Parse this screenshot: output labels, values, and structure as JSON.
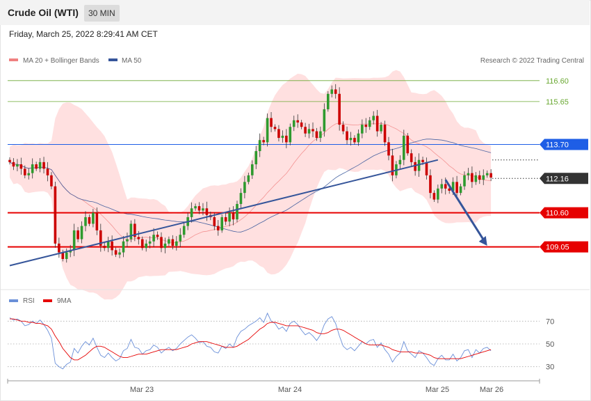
{
  "header": {
    "title": "Crude Oil (WTI)",
    "timeframe": "30 MIN"
  },
  "date_line": "Friday, March 25, 2022 8:29:41 AM CET",
  "legend": {
    "ma20": {
      "label": "MA 20 + Bollinger Bands",
      "color": "#f08080"
    },
    "ma50": {
      "label": "MA 50",
      "color": "#35559a"
    }
  },
  "credit": "Research © 2022 Trading Central",
  "rsi_legend": {
    "rsi": {
      "label": "RSI",
      "color": "#6a8fd8"
    },
    "ma9": {
      "label": "9MA",
      "color": "#e60000"
    }
  },
  "colors": {
    "up": "#2e9a2e",
    "down": "#cc0000",
    "band": "#ffdada",
    "trend": "#35559a"
  },
  "chart_data": [
    {
      "type": "line",
      "subtype": "candlestick",
      "title": "Crude Oil (WTI)",
      "ylim": [
        107.3,
        117.1
      ],
      "x_ticks": [
        "Mar 23",
        "Mar 24",
        "Mar 25",
        "Mar 26"
      ],
      "levels": [
        {
          "label": "116.60",
          "value": 116.6,
          "kind": "target",
          "color": "#6aa832"
        },
        {
          "label": "115.65",
          "value": 115.65,
          "kind": "target",
          "color": "#6aa832"
        },
        {
          "label": "113.70",
          "value": 113.7,
          "kind": "pivot",
          "color": "#1e5ee6"
        },
        {
          "label": "112.16",
          "value": 112.16,
          "kind": "last price",
          "color": "#333333"
        },
        {
          "label": "110.60",
          "value": 110.6,
          "kind": "support",
          "color": "#e60000"
        },
        {
          "label": "109.05",
          "value": 109.05,
          "kind": "support",
          "color": "#e60000"
        }
      ],
      "trendline": {
        "from": [
          0,
          108.2
        ],
        "to": [
          113,
          113.0
        ]
      },
      "arrow": {
        "from": [
          115,
          112.1
        ],
        "to": [
          126,
          109.1
        ]
      },
      "close": [
        112.9,
        112.7,
        112.8,
        112.6,
        112.3,
        112.4,
        112.8,
        112.6,
        112.9,
        112.6,
        112.3,
        111.8,
        109.2,
        108.8,
        108.5,
        108.8,
        108.9,
        109.8,
        109.4,
        110.0,
        110.4,
        110.1,
        110.6,
        109.8,
        109.1,
        109.0,
        109.3,
        108.9,
        108.7,
        108.8,
        109.3,
        109.4,
        110.1,
        109.5,
        109.4,
        109.0,
        109.2,
        109.3,
        109.6,
        109.5,
        109.0,
        109.2,
        109.4,
        109.1,
        109.3,
        109.6,
        110.0,
        110.4,
        110.8,
        110.9,
        110.7,
        110.8,
        110.5,
        110.4,
        110.0,
        109.8,
        110.4,
        110.2,
        110.6,
        110.3,
        111.0,
        111.5,
        112.0,
        112.3,
        112.8,
        113.4,
        113.9,
        113.8,
        114.9,
        114.5,
        114.4,
        114.0,
        114.1,
        113.8,
        114.5,
        114.8,
        114.7,
        114.5,
        114.2,
        114.4,
        114.3,
        114.0,
        114.3,
        115.3,
        116.0,
        116.2,
        116.0,
        114.6,
        114.3,
        113.9,
        114.0,
        113.8,
        114.2,
        114.6,
        114.5,
        114.8,
        115.0,
        114.3,
        114.6,
        113.8,
        113.2,
        112.3,
        112.8,
        113.0,
        114.1,
        113.3,
        112.9,
        112.5,
        113.0,
        112.9,
        112.3,
        111.5,
        111.2,
        111.7,
        111.9,
        111.7,
        111.6,
        112.0,
        111.5,
        111.8,
        112.3,
        112.4,
        112.0,
        112.3,
        112.1,
        112.3,
        112.4,
        112.2
      ],
      "rsi": {
        "ylim": [
          20,
          80
        ],
        "ticks": [
          70,
          50,
          30
        ],
        "rsi": [
          73,
          71,
          72,
          70,
          66,
          67,
          70,
          68,
          71,
          67,
          62,
          55,
          33,
          30,
          28,
          32,
          34,
          46,
          42,
          48,
          52,
          49,
          55,
          47,
          40,
          38,
          42,
          38,
          35,
          37,
          44,
          46,
          54,
          47,
          46,
          41,
          44,
          45,
          49,
          47,
          42,
          45,
          47,
          44,
          46,
          50,
          53,
          56,
          58,
          55,
          51,
          52,
          48,
          47,
          43,
          42,
          48,
          46,
          50,
          47,
          56,
          61,
          63,
          66,
          68,
          70,
          73,
          69,
          77,
          70,
          68,
          63,
          65,
          61,
          68,
          70,
          67,
          62,
          58,
          60,
          57,
          53,
          58,
          67,
          72,
          74,
          68,
          57,
          48,
          45,
          47,
          44,
          48,
          52,
          50,
          53,
          54,
          47,
          51,
          45,
          41,
          34,
          39,
          42,
          52,
          44,
          41,
          38,
          44,
          42,
          38,
          33,
          31,
          37,
          40,
          36,
          36,
          41,
          35,
          38,
          44,
          45,
          38,
          45,
          42,
          46,
          47,
          44
        ],
        "ma9": [
          72,
          72,
          71,
          70,
          70,
          69,
          69,
          68,
          68,
          67,
          66,
          63,
          57,
          52,
          46,
          42,
          38,
          36,
          36,
          38,
          40,
          43,
          46,
          48,
          48,
          47,
          45,
          43,
          41,
          39,
          38,
          38,
          39,
          40,
          41,
          41,
          41,
          42,
          43,
          44,
          45,
          45,
          45,
          45,
          45,
          46,
          47,
          48,
          50,
          51,
          52,
          52,
          52,
          51,
          50,
          49,
          48,
          47,
          47,
          47,
          48,
          50,
          52,
          54,
          57,
          60,
          63,
          65,
          68,
          69,
          69,
          68,
          67,
          66,
          66,
          66,
          66,
          65,
          64,
          63,
          62,
          60,
          59,
          59,
          60,
          62,
          63,
          63,
          62,
          60,
          58,
          56,
          54,
          52,
          50,
          49,
          49,
          49,
          49,
          48,
          47,
          45,
          44,
          43,
          43,
          43,
          43,
          42,
          42,
          42,
          41,
          40,
          38,
          37,
          37,
          37,
          37,
          37,
          37,
          37,
          38,
          39,
          40,
          41,
          42,
          43,
          44,
          45
        ]
      }
    }
  ]
}
